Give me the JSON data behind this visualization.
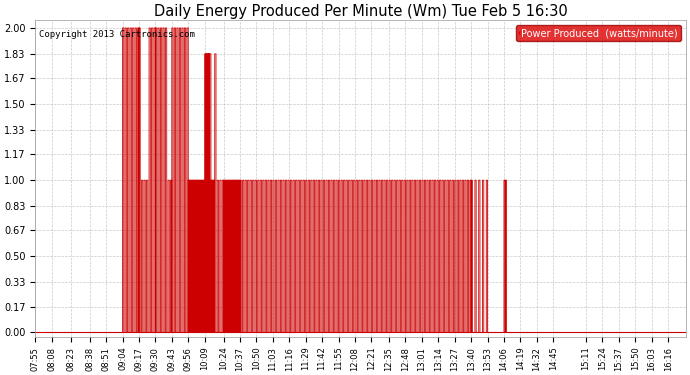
{
  "title": "Daily Energy Produced Per Minute (Wm) Tue Feb 5 16:30",
  "copyright": "Copyright 2013 Cartronics.com",
  "legend_label": "Power Produced  (watts/minute)",
  "legend_bg": "#dd0000",
  "legend_fg": "#ffffff",
  "line_color": "#cc0000",
  "bg_color": "#ffffff",
  "grid_color": "#bbbbbb",
  "ylim": [
    0.0,
    2.0
  ],
  "yticks": [
    0.0,
    0.17,
    0.33,
    0.5,
    0.67,
    0.83,
    1.0,
    1.17,
    1.33,
    1.5,
    1.67,
    1.83,
    2.0
  ],
  "xtick_labels": [
    "07:55",
    "08:08",
    "08:23",
    "08:38",
    "08:51",
    "09:04",
    "09:17",
    "09:30",
    "09:43",
    "09:56",
    "10:09",
    "10:24",
    "10:37",
    "10:50",
    "11:03",
    "11:16",
    "11:29",
    "11:42",
    "11:55",
    "12:08",
    "12:21",
    "12:35",
    "12:48",
    "13:01",
    "13:14",
    "13:27",
    "13:40",
    "13:53",
    "14:06",
    "14:19",
    "14:32",
    "14:45",
    "15:11",
    "15:24",
    "15:37",
    "15:50",
    "16:03",
    "16:16"
  ],
  "figsize": [
    6.9,
    3.75
  ],
  "dpi": 100
}
